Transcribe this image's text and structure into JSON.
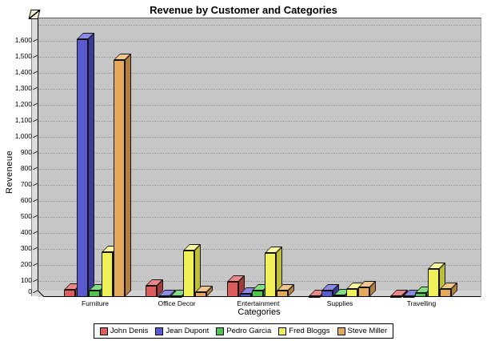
{
  "title": "Revenue by Customer and Categories",
  "y_axis": {
    "label": "Reveneue",
    "ticks": [
      "0",
      "100",
      "200",
      "300",
      "400",
      "500",
      "600",
      "700",
      "800",
      "900",
      "1,000",
      "1,100",
      "1,200",
      "1,300",
      "1,400",
      "1,500",
      "1,600"
    ]
  },
  "x_axis": {
    "label": "Categories"
  },
  "chart_data": {
    "type": "bar",
    "style": "pseudo-3d",
    "title": "Revenue by Customer and Categories",
    "xlabel": "Categories",
    "ylabel": "Reveneue",
    "categories": [
      "Furniture",
      "Office Decor",
      "Entertainment",
      "Supplies",
      "Travelling"
    ],
    "series": [
      {
        "name": "John Denis",
        "color": "#dd5c5c",
        "top_color": "#ec8888",
        "side_color": "#a33b3b",
        "values": [
          45,
          70,
          95,
          5,
          4
        ]
      },
      {
        "name": "Jean Dupont",
        "color": "#5a5ad0",
        "top_color": "#8a8ae4",
        "side_color": "#3b3b9e",
        "values": [
          1610,
          5,
          22,
          42,
          5
        ]
      },
      {
        "name": "Pedro Garcia",
        "color": "#4fc44f",
        "top_color": "#82dc82",
        "side_color": "#338f33",
        "values": [
          40,
          5,
          38,
          8,
          26
        ]
      },
      {
        "name": "Fred Bloggs",
        "color": "#f0f058",
        "top_color": "#f8f8a0",
        "side_color": "#bebe3a",
        "values": [
          280,
          290,
          275,
          50,
          175
        ]
      },
      {
        "name": "Steve Miller",
        "color": "#e5a95e",
        "top_color": "#efc78e",
        "side_color": "#b27e3c",
        "values": [
          1480,
          28,
          42,
          60,
          48
        ]
      }
    ],
    "ylim": [
      0,
      1700
    ],
    "grid": true,
    "grid_step": 100,
    "legend_position": "bottom",
    "plot_bg": "#c6c6c6",
    "grid_color": "#8f8f8f"
  }
}
